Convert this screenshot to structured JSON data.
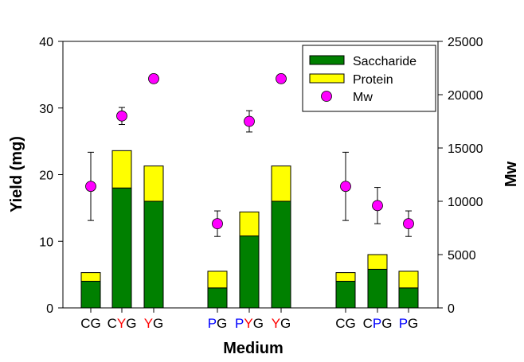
{
  "chart_data": {
    "type": "bar",
    "xlabel": "Medium",
    "ylabel": "Yield (mg)",
    "y2label": "Mw",
    "ylim": [
      0,
      40
    ],
    "y2lim": [
      0,
      25000
    ],
    "yticks": [
      "0",
      "10",
      "20",
      "30",
      "40"
    ],
    "y2ticks": [
      "0",
      "5000",
      "10000",
      "15000",
      "20000",
      "25000"
    ],
    "stacked": true,
    "grid": false,
    "legend_position": "top-right",
    "categories": [
      {
        "parts": [
          {
            "text": "CG",
            "color": "#000000"
          }
        ]
      },
      {
        "parts": [
          {
            "text": "C",
            "color": "#000000"
          },
          {
            "text": "Y",
            "color": "#ff0000"
          },
          {
            "text": "G",
            "color": "#000000"
          }
        ]
      },
      {
        "parts": [
          {
            "text": "Y",
            "color": "#ff0000"
          },
          {
            "text": "G",
            "color": "#000000"
          }
        ]
      },
      {
        "parts": [
          {
            "text": "P",
            "color": "#0000ff"
          },
          {
            "text": "G",
            "color": "#000000"
          }
        ]
      },
      {
        "parts": [
          {
            "text": "P",
            "color": "#0000ff"
          },
          {
            "text": "Y",
            "color": "#ff0000"
          },
          {
            "text": "G",
            "color": "#000000"
          }
        ]
      },
      {
        "parts": [
          {
            "text": "Y",
            "color": "#ff0000"
          },
          {
            "text": "G",
            "color": "#000000"
          }
        ]
      },
      {
        "parts": [
          {
            "text": "CG",
            "color": "#000000"
          }
        ]
      },
      {
        "parts": [
          {
            "text": "C",
            "color": "#000000"
          },
          {
            "text": "P",
            "color": "#0000ff"
          },
          {
            "text": "G",
            "color": "#000000"
          }
        ]
      },
      {
        "parts": [
          {
            "text": "P",
            "color": "#0000ff"
          },
          {
            "text": "G",
            "color": "#000000"
          }
        ]
      }
    ],
    "series": [
      {
        "name": "Saccharide",
        "color": "#008000",
        "axis": "left",
        "values": [
          4.0,
          18.0,
          16.0,
          3.0,
          10.8,
          16.0,
          4.0,
          5.8,
          3.0
        ]
      },
      {
        "name": "Protein",
        "color": "#ffff00",
        "axis": "left",
        "values": [
          1.3,
          5.6,
          5.3,
          2.5,
          3.6,
          5.3,
          1.3,
          2.2,
          2.5
        ]
      },
      {
        "name": "Mw",
        "color": "#ff00ff",
        "axis": "right",
        "type": "scatter",
        "values": [
          11400,
          18000,
          21500,
          7900,
          17500,
          21500,
          11400,
          9600,
          7900
        ],
        "error": [
          3200,
          800,
          400,
          1200,
          1000,
          400,
          3200,
          1700,
          1200
        ]
      }
    ]
  }
}
